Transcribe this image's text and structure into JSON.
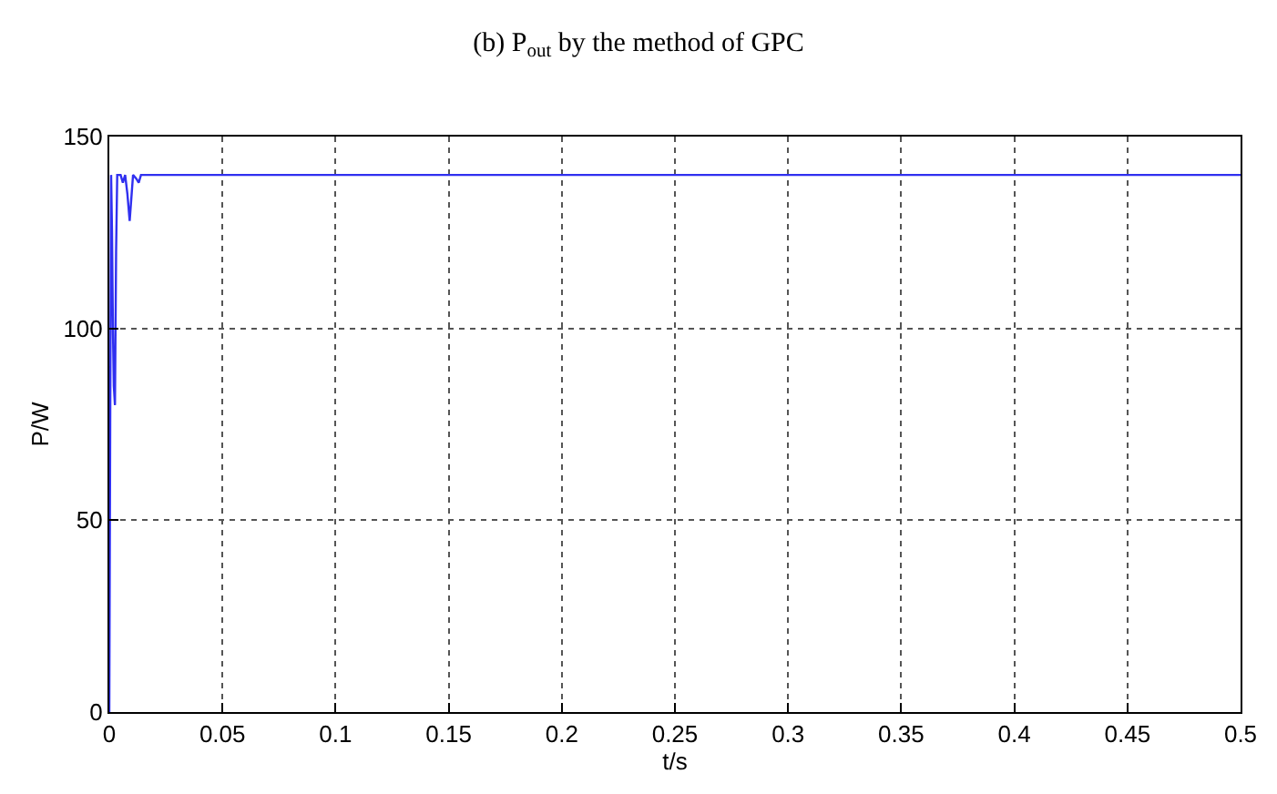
{
  "chart_data": {
    "type": "line",
    "title": "(b) P$_{out}$ by the method of GPC",
    "xlabel": "t/s",
    "ylabel": "P/W",
    "series": [
      {
        "color": "#3030f0",
        "x": [
          0,
          0.0004,
          0.0008,
          0.0012,
          0.0016,
          0.002,
          0.0025,
          0.003,
          0.0035,
          0.005,
          0.006,
          0.007,
          0.008,
          0.009,
          0.0105,
          0.012,
          0.013,
          0.014,
          0.016,
          0.1,
          0.2,
          0.3,
          0.4,
          0.5
        ],
        "values": [
          0,
          75,
          140,
          125,
          100,
          85,
          80,
          120,
          140,
          140,
          138,
          140,
          135,
          128,
          140,
          139,
          138,
          140,
          140,
          140,
          140,
          140,
          140,
          140
        ]
      }
    ],
    "xlim": [
      0,
      0.5
    ],
    "xticks": [
      0,
      0.05,
      0.1,
      0.15,
      0.2,
      0.25,
      0.3,
      0.35,
      0.4,
      0.45,
      0.5
    ],
    "ylim": [
      0,
      150
    ],
    "yticks": [
      0,
      50,
      100,
      150
    ],
    "grid": true,
    "line_style": "solid",
    "marker": "none"
  }
}
